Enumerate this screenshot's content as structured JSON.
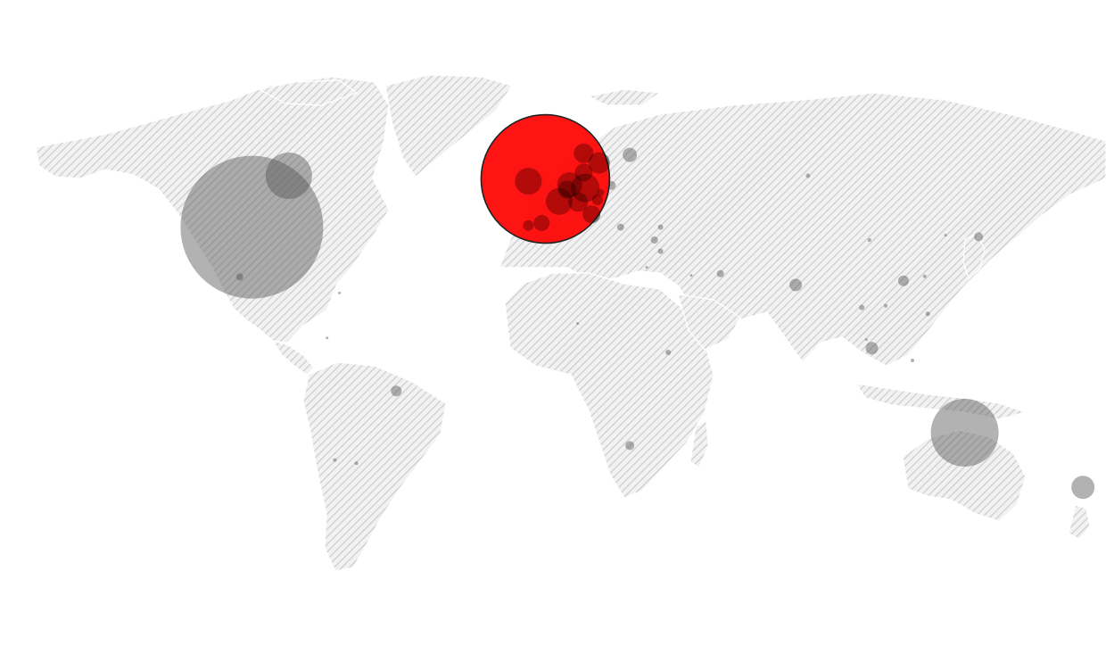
{
  "map": {
    "style": "hatched-world-proportional-bubbles",
    "colors": {
      "land_hatch": "#d4d4d4",
      "background": "#ffffff",
      "bubble": "#555555",
      "highlight_bubble": "#ff0000",
      "highlight_stroke": "#222222"
    },
    "highlighted_location": "United Kingdom",
    "bubbles": [
      {
        "id": "united-kingdom",
        "lat": 54.0,
        "lon": -2.5,
        "r": 72,
        "highlight": true
      },
      {
        "id": "united-states",
        "lat": 39.0,
        "lon": -98.0,
        "r": 80
      },
      {
        "id": "canada",
        "lat": 55.0,
        "lon": -86.0,
        "r": 26
      },
      {
        "id": "australia",
        "lat": -25.0,
        "lon": 134.0,
        "r": 38
      },
      {
        "id": "new-zealand",
        "lat": -42.0,
        "lon": 172.5,
        "r": 13
      },
      {
        "id": "ireland",
        "lat": 53.3,
        "lon": -8.0,
        "r": 15
      },
      {
        "id": "norway",
        "lat": 62.0,
        "lon": 10.0,
        "r": 11
      },
      {
        "id": "sweden",
        "lat": 59.0,
        "lon": 15.0,
        "r": 12
      },
      {
        "id": "finland",
        "lat": 61.5,
        "lon": 25.0,
        "r": 8
      },
      {
        "id": "denmark",
        "lat": 56.0,
        "lon": 10.0,
        "r": 10
      },
      {
        "id": "netherlands",
        "lat": 52.2,
        "lon": 5.4,
        "r": 14
      },
      {
        "id": "germany",
        "lat": 51.2,
        "lon": 10.5,
        "r": 16
      },
      {
        "id": "belgium",
        "lat": 50.7,
        "lon": 4.6,
        "r": 10
      },
      {
        "id": "france",
        "lat": 47.0,
        "lon": 2.0,
        "r": 15
      },
      {
        "id": "switzerland",
        "lat": 46.8,
        "lon": 8.2,
        "r": 11
      },
      {
        "id": "austria",
        "lat": 47.5,
        "lon": 14.5,
        "r": 6
      },
      {
        "id": "poland",
        "lat": 52.0,
        "lon": 19.0,
        "r": 5
      },
      {
        "id": "czechia",
        "lat": 49.8,
        "lon": 15.5,
        "r": 4
      },
      {
        "id": "spain",
        "lat": 40.3,
        "lon": -3.7,
        "r": 9
      },
      {
        "id": "portugal",
        "lat": 39.5,
        "lon": -8.0,
        "r": 6
      },
      {
        "id": "italy",
        "lat": 43.0,
        "lon": 12.5,
        "r": 10
      },
      {
        "id": "greece",
        "lat": 39.0,
        "lon": 22.0,
        "r": 4
      },
      {
        "id": "turkey",
        "lat": 39.0,
        "lon": 35.0,
        "r": 3
      },
      {
        "id": "cyprus",
        "lat": 35.0,
        "lon": 33.0,
        "r": 4
      },
      {
        "id": "israel",
        "lat": 31.5,
        "lon": 35.0,
        "r": 3
      },
      {
        "id": "uae",
        "lat": 24.5,
        "lon": 54.5,
        "r": 4
      },
      {
        "id": "saudi-arabia",
        "lat": 24.0,
        "lon": 45.0,
        "r": 1.5
      },
      {
        "id": "russia",
        "lat": 55.0,
        "lon": 83.0,
        "r": 2.5
      },
      {
        "id": "china",
        "lat": 35.0,
        "lon": 103.0,
        "r": 2
      },
      {
        "id": "japan",
        "lat": 36.0,
        "lon": 138.5,
        "r": 5
      },
      {
        "id": "south-korea",
        "lat": 36.5,
        "lon": 127.8,
        "r": 1.5
      },
      {
        "id": "india",
        "lat": 21.0,
        "lon": 79.0,
        "r": 7
      },
      {
        "id": "hong-kong",
        "lat": 22.3,
        "lon": 114.1,
        "r": 6
      },
      {
        "id": "taiwan",
        "lat": 23.7,
        "lon": 121.0,
        "r": 2
      },
      {
        "id": "thailand",
        "lat": 14.0,
        "lon": 100.5,
        "r": 3
      },
      {
        "id": "vietnam",
        "lat": 14.5,
        "lon": 108.3,
        "r": 2
      },
      {
        "id": "philippines",
        "lat": 12.0,
        "lon": 122.0,
        "r": 2.5
      },
      {
        "id": "malaysia",
        "lat": 4.0,
        "lon": 102.0,
        "r": 1.5
      },
      {
        "id": "singapore",
        "lat": 1.3,
        "lon": 103.8,
        "r": 7
      },
      {
        "id": "indonesia",
        "lat": -2.5,
        "lon": 117.0,
        "r": 2
      },
      {
        "id": "nigeria",
        "lat": 9.0,
        "lon": 8.0,
        "r": 1.5
      },
      {
        "id": "kenya",
        "lat": 0.0,
        "lon": 37.5,
        "r": 3
      },
      {
        "id": "south-africa",
        "lat": -29.0,
        "lon": 25.0,
        "r": 5
      },
      {
        "id": "egypt",
        "lat": 26.5,
        "lon": 30.5,
        "r": 1.5
      },
      {
        "id": "mexico",
        "lat": 23.5,
        "lon": -102.0,
        "r": 4
      },
      {
        "id": "caribbean",
        "lat": 18.5,
        "lon": -69.5,
        "r": 1.5
      },
      {
        "id": "brazil",
        "lat": -12.0,
        "lon": -51.0,
        "r": 6
      },
      {
        "id": "colombia",
        "lat": 4.5,
        "lon": -73.5,
        "r": 1.5
      },
      {
        "id": "argentina",
        "lat": -34.5,
        "lon": -64.0,
        "r": 2
      },
      {
        "id": "chile",
        "lat": -33.5,
        "lon": -71.0,
        "r": 2
      }
    ]
  }
}
